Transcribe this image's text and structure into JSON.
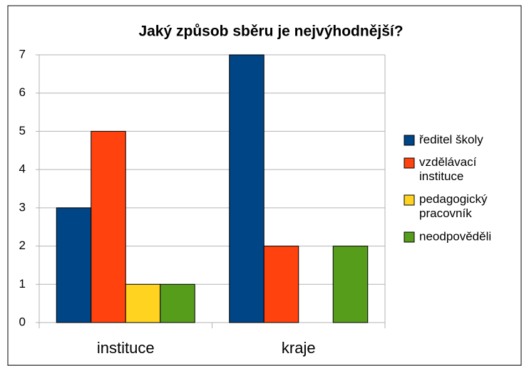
{
  "chart_data": {
    "type": "bar",
    "title": "Jaký způsob sběru je nejvýhodnější?",
    "categories": [
      "instituce",
      "kraje"
    ],
    "series": [
      {
        "name": "ředitel školy",
        "color": "#004586",
        "values": [
          3,
          7
        ]
      },
      {
        "name": "vzdělávací instituce",
        "color": "#ff420e",
        "values": [
          5,
          2
        ]
      },
      {
        "name": "pedagogický pracovník",
        "color": "#ffd320",
        "values": [
          1,
          0
        ]
      },
      {
        "name": "neodpověděli",
        "color": "#579d1c",
        "values": [
          1,
          2
        ]
      }
    ],
    "ylim": [
      0,
      7
    ],
    "yticks": [
      0,
      1,
      2,
      3,
      4,
      5,
      6,
      7
    ],
    "grid": true,
    "legend": "right"
  }
}
